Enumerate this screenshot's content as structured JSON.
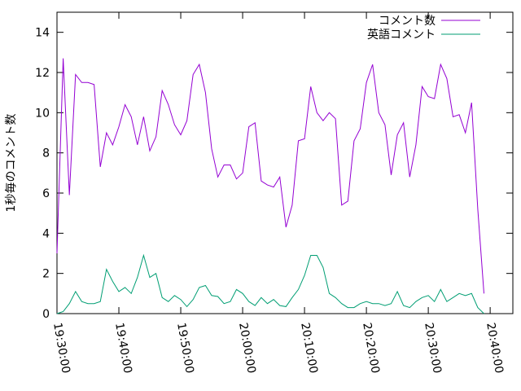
{
  "chart_data": {
    "type": "line",
    "ylabel": "1秒毎のコメント数",
    "x": [
      "19:30:00",
      "19:31:00",
      "19:32:00",
      "19:33:00",
      "19:34:00",
      "19:35:00",
      "19:36:00",
      "19:37:00",
      "19:38:00",
      "19:39:00",
      "19:40:00",
      "19:41:00",
      "19:42:00",
      "19:43:00",
      "19:44:00",
      "19:45:00",
      "19:46:00",
      "19:47:00",
      "19:48:00",
      "19:49:00",
      "19:50:00",
      "19:51:00",
      "19:52:00",
      "19:53:00",
      "19:54:00",
      "19:55:00",
      "19:56:00",
      "19:57:00",
      "19:58:00",
      "19:59:00",
      "20:00:00",
      "20:01:00",
      "20:02:00",
      "20:03:00",
      "20:04:00",
      "20:05:00",
      "20:06:00",
      "20:07:00",
      "20:08:00",
      "20:09:00",
      "20:10:00",
      "20:11:00",
      "20:12:00",
      "20:13:00",
      "20:14:00",
      "20:15:00",
      "20:16:00",
      "20:17:00",
      "20:18:00",
      "20:19:00",
      "20:20:00",
      "20:21:00",
      "20:22:00",
      "20:23:00",
      "20:24:00",
      "20:25:00",
      "20:26:00",
      "20:27:00",
      "20:28:00",
      "20:29:00",
      "20:30:00",
      "20:31:00",
      "20:32:00",
      "20:33:00",
      "20:34:00",
      "20:35:00",
      "20:36:00",
      "20:37:00",
      "20:38:00",
      "20:39:00"
    ],
    "series": [
      {
        "name": "コメント数",
        "color": "#9400d3",
        "values": [
          3,
          12.7,
          5.9,
          11.9,
          11.5,
          11.5,
          11.4,
          7.3,
          9.0,
          8.4,
          9.3,
          10.4,
          9.8,
          8.4,
          9.8,
          8.1,
          8.8,
          11.1,
          10.4,
          9.4,
          8.9,
          9.6,
          11.9,
          12.4,
          11,
          8.2,
          6.8,
          7.4,
          7.4,
          6.7,
          7.0,
          9.3,
          9.5,
          6.6,
          6.4,
          6.3,
          6.8,
          4.3,
          5.4,
          8.6,
          8.7,
          11.3,
          10.0,
          9.6,
          10.0,
          9.7,
          5.4,
          5.6,
          8.6,
          9.2,
          11.5,
          12.4,
          10.0,
          9.4,
          6.9,
          8.9,
          9.5,
          6.8,
          8.4,
          11.3,
          10.8,
          10.7,
          12.4,
          11.7,
          9.8,
          9.9,
          9.0,
          10.5,
          5.2,
          1.0
        ]
      },
      {
        "name": "英語コメント",
        "color": "#009e73",
        "values": [
          0,
          0.1,
          0.5,
          1.1,
          0.6,
          0.5,
          0.5,
          0.6,
          2.2,
          1.6,
          1.1,
          1.3,
          1.0,
          1.8,
          2.9,
          1.8,
          2.0,
          0.8,
          0.6,
          0.9,
          0.7,
          0.35,
          0.7,
          1.3,
          1.4,
          0.9,
          0.85,
          0.5,
          0.6,
          1.2,
          1.0,
          0.6,
          0.4,
          0.8,
          0.5,
          0.7,
          0.4,
          0.35,
          0.8,
          1.2,
          1.9,
          2.9,
          2.9,
          2.3,
          1.0,
          0.8,
          0.5,
          0.3,
          0.3,
          0.5,
          0.6,
          0.5,
          0.5,
          0.4,
          0.5,
          1.1,
          0.4,
          0.3,
          0.6,
          0.8,
          0.9,
          0.6,
          1.2,
          0.6,
          0.8,
          1.0,
          0.9,
          1.0,
          0.3,
          0.0
        ]
      }
    ],
    "xlim": [
      "19:30:00",
      "20:43:40"
    ],
    "xticks": [
      "19:30:00",
      "19:40:00",
      "19:50:00",
      "20:00:00",
      "20:10:00",
      "20:20:00",
      "20:30:00",
      "20:40:00"
    ],
    "ylim": [
      0,
      15
    ],
    "yticks": [
      0,
      2,
      4,
      6,
      8,
      10,
      12,
      14
    ],
    "legend": "top-right",
    "grid": false
  }
}
